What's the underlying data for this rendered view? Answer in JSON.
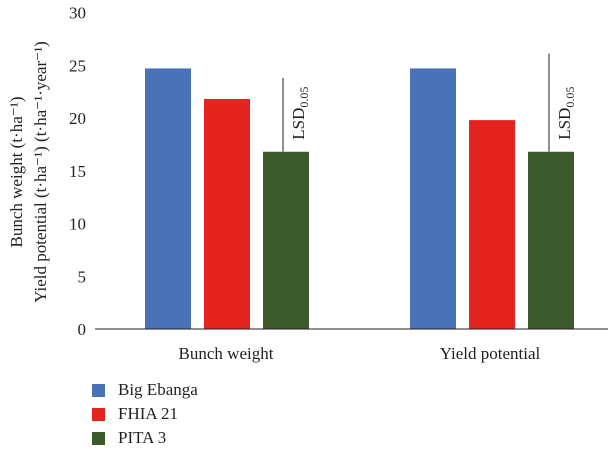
{
  "chart_data": {
    "type": "bar",
    "categories": [
      "Bunch weight",
      "Yield potential"
    ],
    "series": [
      {
        "name": "Big Ebanga",
        "color": "#4a72b8",
        "values": [
          24.7,
          24.7
        ]
      },
      {
        "name": "FHIA 21",
        "color": "#e5231f",
        "values": [
          21.8,
          19.8
        ]
      },
      {
        "name": "PITA 3",
        "color": "#3a5a2c",
        "values": [
          16.8,
          16.8
        ]
      }
    ],
    "lsd": {
      "label": "LSD",
      "subscript": "0.05",
      "tops": [
        23.8,
        26.1
      ]
    },
    "ylabel_line1": "Bunch weight (t·ha⁻¹)",
    "ylabel_line2": "Yield potential (t·ha⁻¹) (t·ha⁻¹·year⁻¹)",
    "ylim": [
      0,
      30
    ],
    "yticks": [
      0,
      5,
      10,
      15,
      20,
      25,
      30
    ],
    "grid": false,
    "legend_position": "bottom-left"
  }
}
